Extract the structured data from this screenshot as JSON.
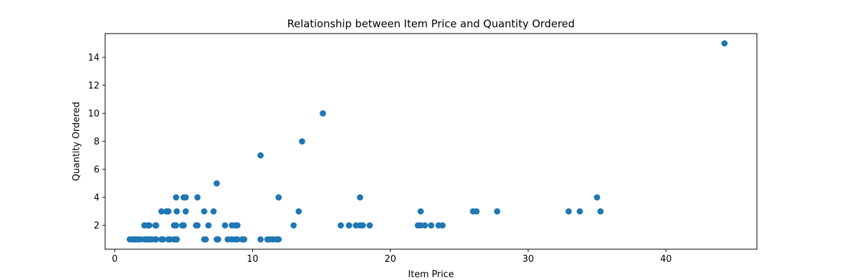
{
  "chart_data": {
    "type": "scatter",
    "title": "Relationship between Item Price and Quantity Ordered",
    "xlabel": "Item Price",
    "ylabel": "Quantity Ordered",
    "xlim": [
      -0.7,
      46.6
    ],
    "ylim": [
      0.3,
      15.7
    ],
    "xticks": [
      0,
      10,
      20,
      30,
      40
    ],
    "yticks": [
      2,
      4,
      6,
      8,
      10,
      12,
      14
    ],
    "grid": false,
    "legend": "none",
    "color": "#1f77b4",
    "points": [
      [
        1.09,
        1
      ],
      [
        1.25,
        1
      ],
      [
        1.39,
        1
      ],
      [
        1.5,
        1
      ],
      [
        1.69,
        1
      ],
      [
        1.85,
        1
      ],
      [
        2.15,
        1
      ],
      [
        2.3,
        1
      ],
      [
        2.39,
        1
      ],
      [
        2.5,
        1
      ],
      [
        2.69,
        1
      ],
      [
        2.95,
        1
      ],
      [
        3.0,
        1
      ],
      [
        3.39,
        1
      ],
      [
        3.5,
        1
      ],
      [
        3.89,
        1
      ],
      [
        4.0,
        1
      ],
      [
        4.3,
        1
      ],
      [
        4.45,
        1
      ],
      [
        4.5,
        1
      ],
      [
        6.49,
        1
      ],
      [
        6.6,
        1
      ],
      [
        7.4,
        1
      ],
      [
        7.5,
        1
      ],
      [
        8.2,
        1
      ],
      [
        8.49,
        1
      ],
      [
        8.75,
        1
      ],
      [
        8.9,
        1
      ],
      [
        9.25,
        1
      ],
      [
        9.39,
        1
      ],
      [
        10.58,
        1
      ],
      [
        11.08,
        1
      ],
      [
        11.25,
        1
      ],
      [
        11.48,
        1
      ],
      [
        11.75,
        1
      ],
      [
        11.89,
        1
      ],
      [
        2.15,
        2
      ],
      [
        2.39,
        2
      ],
      [
        2.5,
        2
      ],
      [
        2.95,
        2
      ],
      [
        3.0,
        2
      ],
      [
        4.3,
        2
      ],
      [
        4.45,
        2
      ],
      [
        4.9,
        2
      ],
      [
        5.0,
        2
      ],
      [
        5.9,
        2
      ],
      [
        6.0,
        2
      ],
      [
        6.8,
        2
      ],
      [
        8.0,
        2
      ],
      [
        8.5,
        2
      ],
      [
        8.75,
        2
      ],
      [
        8.9,
        2
      ],
      [
        12.98,
        2
      ],
      [
        16.4,
        2
      ],
      [
        17.0,
        2
      ],
      [
        17.5,
        2
      ],
      [
        17.8,
        2
      ],
      [
        18.0,
        2
      ],
      [
        18.5,
        2
      ],
      [
        22.0,
        2
      ],
      [
        22.2,
        2
      ],
      [
        22.5,
        2
      ],
      [
        22.96,
        2
      ],
      [
        23.5,
        2
      ],
      [
        23.78,
        2
      ],
      [
        3.39,
        3
      ],
      [
        3.75,
        3
      ],
      [
        3.89,
        3
      ],
      [
        4.5,
        3
      ],
      [
        5.15,
        3
      ],
      [
        6.49,
        3
      ],
      [
        7.17,
        3
      ],
      [
        13.35,
        3
      ],
      [
        22.2,
        3
      ],
      [
        26.0,
        3
      ],
      [
        26.25,
        3
      ],
      [
        27.75,
        3
      ],
      [
        32.94,
        3
      ],
      [
        33.75,
        3
      ],
      [
        35.25,
        3
      ],
      [
        4.45,
        4
      ],
      [
        5.0,
        4
      ],
      [
        5.15,
        4
      ],
      [
        6.0,
        4
      ],
      [
        11.89,
        4
      ],
      [
        17.8,
        4
      ],
      [
        35.0,
        4
      ],
      [
        7.4,
        5
      ],
      [
        10.58,
        7
      ],
      [
        13.59,
        8
      ],
      [
        15.1,
        10
      ],
      [
        44.25,
        15
      ]
    ]
  }
}
